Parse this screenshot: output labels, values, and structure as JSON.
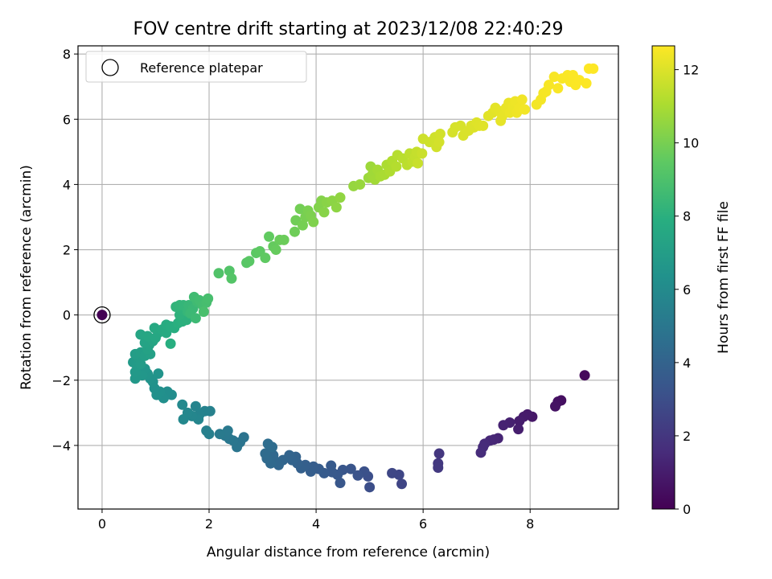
{
  "chart_data": {
    "type": "scatter",
    "title": "FOV centre drift starting at 2023/12/08 22:40:29",
    "xlabel": "Angular distance from reference (arcmin)",
    "ylabel": "Rotation from reference (arcmin)",
    "xlim": [
      -0.45,
      9.65
    ],
    "ylim": [
      -5.95,
      8.25
    ],
    "xticks": [
      "0",
      "2",
      "4",
      "6",
      "8"
    ],
    "yticks": [
      "−4",
      "−2",
      "0",
      "2",
      "4",
      "6",
      "8"
    ],
    "grid": true,
    "legend": {
      "position": "top-left",
      "label": "Reference platepar"
    },
    "colorbar": {
      "label": "Hours from first FF file",
      "min": 0,
      "max": 12.65,
      "ticks": [
        "0",
        "2",
        "4",
        "6",
        "8",
        "10",
        "12"
      ],
      "colormap": "viridis"
    },
    "reference_point": {
      "x": 0,
      "y": 0
    },
    "series": [
      {
        "points": [
          [
            0.0,
            0.0,
            0.0
          ],
          [
            9.02,
            -1.85,
            0.3
          ],
          [
            8.58,
            -2.62,
            0.5
          ],
          [
            8.52,
            -2.66,
            0.55
          ],
          [
            8.47,
            -2.8,
            0.6
          ],
          [
            8.04,
            -3.12,
            0.8
          ],
          [
            7.95,
            -3.05,
            0.9
          ],
          [
            7.88,
            -3.12,
            0.95
          ],
          [
            7.8,
            -3.25,
            1.0
          ],
          [
            7.78,
            -3.5,
            1.05
          ],
          [
            7.62,
            -3.3,
            1.15
          ],
          [
            7.5,
            -3.38,
            1.2
          ],
          [
            7.4,
            -3.78,
            1.3
          ],
          [
            7.32,
            -3.82,
            1.35
          ],
          [
            7.25,
            -3.85,
            1.4
          ],
          [
            7.15,
            -3.95,
            1.5
          ],
          [
            7.12,
            -4.05,
            1.55
          ],
          [
            7.08,
            -4.22,
            1.6
          ],
          [
            6.3,
            -4.25,
            2.0
          ],
          [
            6.28,
            -4.55,
            2.05
          ],
          [
            6.28,
            -4.68,
            2.1
          ],
          [
            5.6,
            -5.18,
            2.6
          ],
          [
            5.55,
            -4.9,
            2.65
          ],
          [
            5.42,
            -4.85,
            2.7
          ],
          [
            5.0,
            -5.28,
            3.0
          ],
          [
            4.97,
            -4.95,
            3.05
          ],
          [
            4.9,
            -4.8,
            3.1
          ],
          [
            4.78,
            -4.92,
            3.2
          ],
          [
            4.65,
            -4.72,
            3.3
          ],
          [
            4.5,
            -4.75,
            3.35
          ],
          [
            4.45,
            -5.15,
            3.4
          ],
          [
            4.4,
            -4.9,
            3.45
          ],
          [
            4.3,
            -4.82,
            3.5
          ],
          [
            4.28,
            -4.62,
            3.55
          ],
          [
            4.15,
            -4.85,
            3.6
          ],
          [
            4.05,
            -4.72,
            3.65
          ],
          [
            3.95,
            -4.65,
            3.7
          ],
          [
            3.9,
            -4.8,
            3.75
          ],
          [
            3.8,
            -4.6,
            3.8
          ],
          [
            3.72,
            -4.7,
            3.85
          ],
          [
            3.65,
            -4.55,
            3.9
          ],
          [
            3.62,
            -4.35,
            3.95
          ],
          [
            3.55,
            -4.45,
            4.0
          ],
          [
            3.5,
            -4.3,
            4.05
          ],
          [
            3.38,
            -4.45,
            4.1
          ],
          [
            3.3,
            -4.6,
            4.15
          ],
          [
            3.25,
            -4.5,
            4.2
          ],
          [
            3.2,
            -4.3,
            4.25
          ],
          [
            3.15,
            -4.55,
            4.3
          ],
          [
            3.08,
            -4.4,
            4.35
          ],
          [
            3.05,
            -4.25,
            4.4
          ],
          [
            3.18,
            -4.05,
            4.45
          ],
          [
            3.1,
            -3.95,
            4.5
          ],
          [
            2.65,
            -3.75,
            4.8
          ],
          [
            2.58,
            -3.9,
            4.85
          ],
          [
            2.52,
            -4.05,
            4.9
          ],
          [
            2.45,
            -3.85,
            4.95
          ],
          [
            2.38,
            -3.8,
            5.0
          ],
          [
            2.3,
            -3.7,
            5.05
          ],
          [
            2.35,
            -3.55,
            5.1
          ],
          [
            2.2,
            -3.65,
            5.15
          ],
          [
            2.0,
            -3.65,
            5.4
          ],
          [
            1.95,
            -3.55,
            5.45
          ],
          [
            2.02,
            -2.95,
            5.5
          ],
          [
            1.92,
            -2.95,
            5.55
          ],
          [
            1.82,
            -3.05,
            5.6
          ],
          [
            1.75,
            -2.8,
            5.65
          ],
          [
            1.8,
            -3.2,
            5.7
          ],
          [
            1.68,
            -3.1,
            5.75
          ],
          [
            1.6,
            -3.0,
            5.8
          ],
          [
            1.52,
            -3.2,
            5.85
          ],
          [
            1.5,
            -2.75,
            5.9
          ],
          [
            1.3,
            -2.45,
            6.1
          ],
          [
            1.22,
            -2.35,
            6.15
          ],
          [
            1.15,
            -2.55,
            6.2
          ],
          [
            1.08,
            -2.35,
            6.25
          ],
          [
            1.02,
            -2.45,
            6.3
          ],
          [
            0.98,
            -2.25,
            6.35
          ],
          [
            0.95,
            -2.05,
            6.4
          ],
          [
            0.9,
            -1.95,
            6.45
          ],
          [
            1.05,
            -1.8,
            6.5
          ],
          [
            0.85,
            -1.8,
            6.55
          ],
          [
            0.8,
            -1.65,
            6.6
          ],
          [
            0.75,
            -1.85,
            6.65
          ],
          [
            0.62,
            -1.95,
            6.7
          ],
          [
            0.62,
            -1.75,
            6.75
          ],
          [
            0.58,
            -1.45,
            6.8
          ],
          [
            0.65,
            -1.55,
            6.85
          ],
          [
            0.72,
            -1.5,
            6.9
          ],
          [
            0.68,
            -1.3,
            6.95
          ],
          [
            0.62,
            -1.2,
            7.0
          ],
          [
            0.72,
            -1.15,
            7.05
          ],
          [
            0.8,
            -1.25,
            7.1
          ],
          [
            0.9,
            -1.2,
            7.15
          ],
          [
            0.85,
            -1.05,
            7.2
          ],
          [
            0.88,
            -0.92,
            7.25
          ],
          [
            0.8,
            -0.85,
            7.3
          ],
          [
            0.95,
            -0.8,
            7.35
          ],
          [
            0.72,
            -0.6,
            7.4
          ],
          [
            0.85,
            -0.65,
            7.45
          ],
          [
            1.0,
            -0.7,
            7.5
          ],
          [
            1.05,
            -0.55,
            7.55
          ],
          [
            0.98,
            -0.4,
            7.6
          ],
          [
            1.12,
            -0.45,
            7.65
          ],
          [
            1.2,
            -0.55,
            7.7
          ],
          [
            1.2,
            -0.3,
            7.75
          ],
          [
            1.28,
            -0.35,
            7.8
          ],
          [
            1.35,
            -0.4,
            7.85
          ],
          [
            1.28,
            -0.88,
            7.9
          ],
          [
            1.42,
            -0.25,
            7.95
          ],
          [
            1.5,
            -0.2,
            8.0
          ],
          [
            1.58,
            -0.15,
            8.05
          ],
          [
            1.45,
            0.0,
            8.1
          ],
          [
            1.5,
            0.15,
            8.15
          ],
          [
            1.38,
            0.25,
            8.2
          ],
          [
            1.45,
            0.3,
            8.25
          ],
          [
            1.52,
            0.3,
            8.3
          ],
          [
            1.6,
            0.1,
            8.35
          ],
          [
            1.62,
            0.3,
            8.4
          ],
          [
            1.7,
            0.2,
            8.45
          ],
          [
            1.65,
            0.05,
            8.5
          ],
          [
            1.75,
            -0.1,
            8.55
          ],
          [
            1.78,
            0.4,
            8.6
          ],
          [
            1.72,
            0.55,
            8.65
          ],
          [
            1.82,
            0.45,
            8.7
          ],
          [
            1.88,
            0.3,
            8.75
          ],
          [
            1.95,
            0.38,
            8.8
          ],
          [
            1.98,
            0.5,
            8.85
          ],
          [
            1.9,
            0.1,
            8.9
          ],
          [
            2.18,
            1.28,
            9.1
          ],
          [
            2.38,
            1.35,
            9.15
          ],
          [
            2.42,
            1.12,
            9.2
          ],
          [
            2.7,
            1.6,
            9.3
          ],
          [
            2.75,
            1.65,
            9.35
          ],
          [
            2.88,
            1.9,
            9.4
          ],
          [
            2.95,
            1.95,
            9.45
          ],
          [
            3.05,
            1.75,
            9.5
          ],
          [
            3.12,
            2.4,
            9.55
          ],
          [
            3.2,
            2.1,
            9.6
          ],
          [
            3.25,
            2.0,
            9.65
          ],
          [
            3.32,
            2.3,
            9.7
          ],
          [
            3.4,
            2.3,
            9.75
          ],
          [
            3.6,
            2.55,
            9.8
          ],
          [
            3.62,
            2.9,
            9.85
          ],
          [
            3.7,
            3.25,
            9.9
          ],
          [
            3.75,
            2.75,
            9.95
          ],
          [
            3.8,
            3.0,
            10.0
          ],
          [
            3.85,
            3.2,
            10.05
          ],
          [
            3.9,
            3.05,
            10.1
          ],
          [
            3.95,
            2.85,
            10.15
          ],
          [
            4.05,
            3.3,
            10.2
          ],
          [
            4.1,
            3.5,
            10.25
          ],
          [
            4.15,
            3.15,
            10.3
          ],
          [
            4.2,
            3.45,
            10.35
          ],
          [
            4.3,
            3.5,
            10.4
          ],
          [
            4.38,
            3.3,
            10.45
          ],
          [
            4.45,
            3.6,
            10.5
          ],
          [
            4.7,
            3.95,
            10.6
          ],
          [
            4.82,
            4.0,
            10.65
          ],
          [
            4.98,
            4.2,
            10.7
          ],
          [
            5.02,
            4.55,
            10.75
          ],
          [
            5.05,
            4.3,
            10.8
          ],
          [
            5.1,
            4.15,
            10.85
          ],
          [
            5.15,
            4.45,
            10.9
          ],
          [
            5.2,
            4.25,
            10.95
          ],
          [
            5.28,
            4.3,
            11.0
          ],
          [
            5.32,
            4.6,
            11.05
          ],
          [
            5.38,
            4.4,
            11.1
          ],
          [
            5.42,
            4.72,
            11.15
          ],
          [
            5.5,
            4.55,
            11.2
          ],
          [
            5.52,
            4.9,
            11.25
          ],
          [
            5.62,
            4.8,
            11.3
          ],
          [
            5.7,
            4.6,
            11.35
          ],
          [
            5.75,
            4.95,
            11.4
          ],
          [
            5.8,
            4.7,
            11.45
          ],
          [
            5.85,
            4.85,
            11.5
          ],
          [
            5.88,
            5.0,
            11.55
          ],
          [
            5.9,
            4.65,
            11.6
          ],
          [
            5.98,
            4.95,
            11.65
          ],
          [
            6.0,
            5.4,
            11.7
          ],
          [
            6.12,
            5.3,
            11.72
          ],
          [
            6.22,
            5.45,
            11.75
          ],
          [
            6.25,
            5.15,
            11.78
          ],
          [
            6.32,
            5.55,
            11.8
          ],
          [
            6.3,
            5.3,
            11.82
          ],
          [
            6.55,
            5.6,
            11.85
          ],
          [
            6.6,
            5.75,
            11.88
          ],
          [
            6.7,
            5.8,
            11.9
          ],
          [
            6.75,
            5.5,
            11.93
          ],
          [
            6.85,
            5.65,
            11.95
          ],
          [
            6.9,
            5.8,
            11.98
          ],
          [
            6.95,
            5.75,
            12.0
          ],
          [
            7.0,
            5.9,
            12.03
          ],
          [
            7.05,
            5.8,
            12.05
          ],
          [
            7.12,
            5.8,
            12.08
          ],
          [
            7.22,
            6.1,
            12.1
          ],
          [
            7.3,
            6.2,
            12.12
          ],
          [
            7.35,
            6.35,
            12.15
          ],
          [
            7.42,
            6.25,
            12.17
          ],
          [
            7.45,
            5.95,
            12.2
          ],
          [
            7.48,
            6.1,
            12.22
          ],
          [
            7.55,
            6.35,
            12.25
          ],
          [
            7.6,
            6.5,
            12.27
          ],
          [
            7.62,
            6.2,
            12.3
          ],
          [
            7.68,
            6.4,
            12.32
          ],
          [
            7.72,
            6.55,
            12.35
          ],
          [
            7.75,
            6.2,
            12.37
          ],
          [
            7.8,
            6.35,
            12.4
          ],
          [
            7.85,
            6.6,
            12.42
          ],
          [
            7.9,
            6.3,
            12.44
          ],
          [
            8.12,
            6.45,
            12.46
          ],
          [
            8.2,
            6.6,
            12.48
          ],
          [
            8.25,
            6.8,
            12.5
          ],
          [
            8.3,
            6.85,
            12.52
          ],
          [
            8.35,
            7.05,
            12.54
          ],
          [
            8.45,
            7.3,
            12.56
          ],
          [
            8.52,
            6.95,
            12.57
          ],
          [
            8.6,
            7.25,
            12.58
          ],
          [
            8.7,
            7.35,
            12.59
          ],
          [
            8.75,
            7.15,
            12.6
          ],
          [
            8.8,
            7.35,
            12.61
          ],
          [
            8.85,
            7.05,
            12.62
          ],
          [
            8.92,
            7.2,
            12.63
          ],
          [
            9.05,
            7.1,
            12.64
          ],
          [
            9.1,
            7.55,
            12.65
          ],
          [
            9.18,
            7.55,
            12.65
          ]
        ]
      }
    ]
  }
}
